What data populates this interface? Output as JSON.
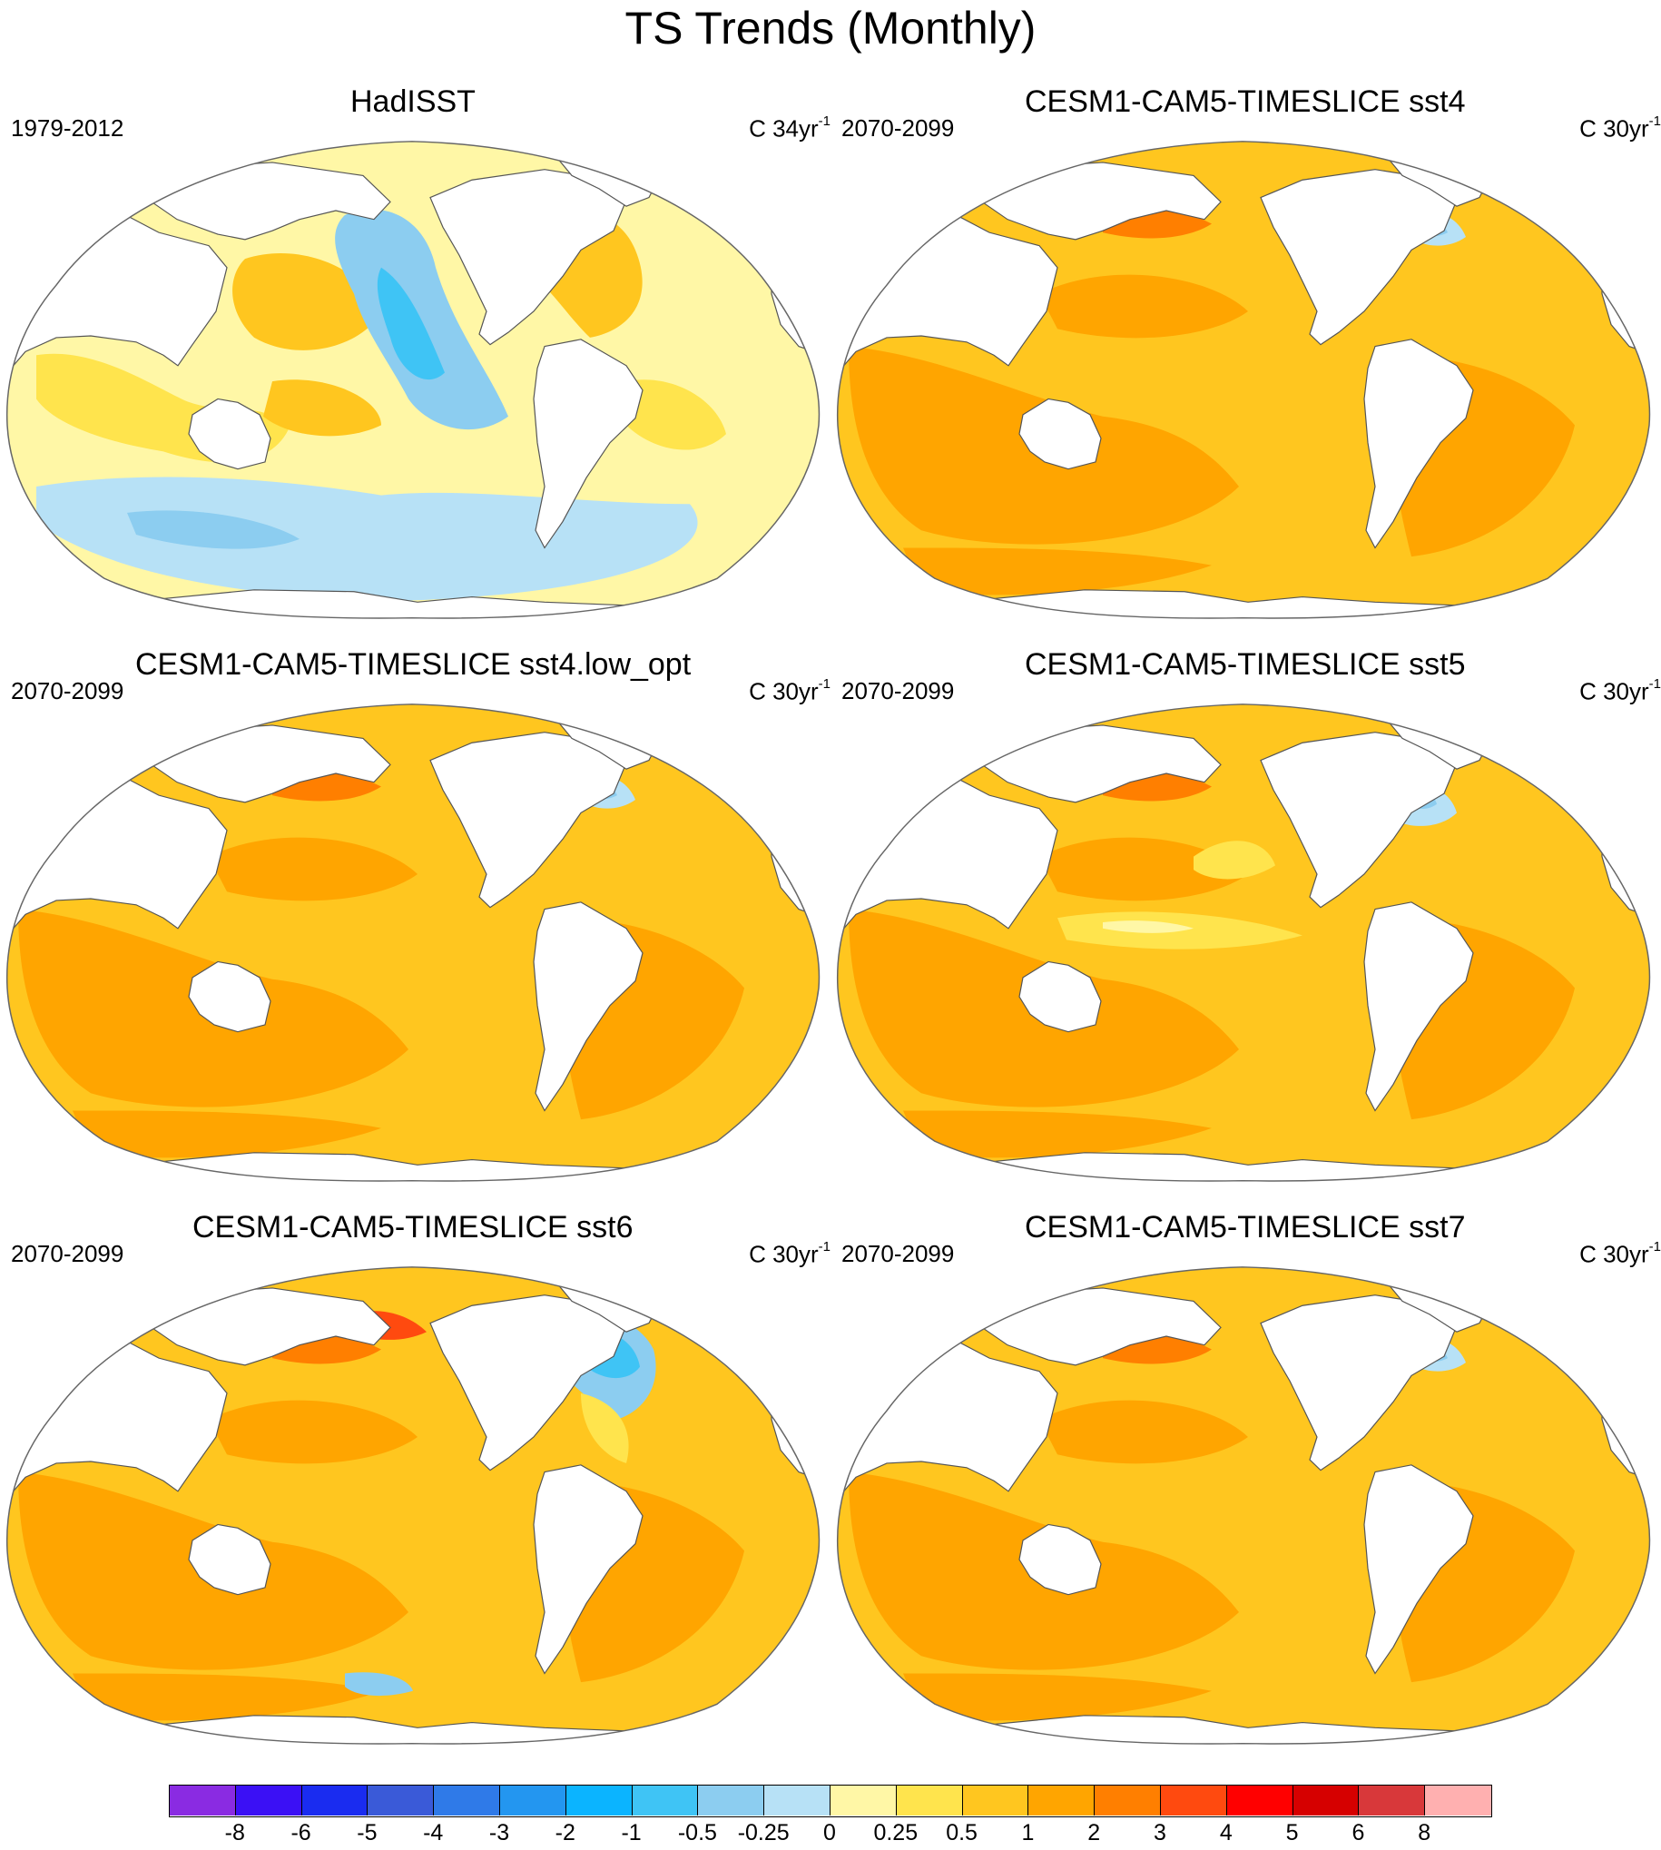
{
  "title": "TS Trends (Monthly)",
  "panels": [
    {
      "title": "HadISST",
      "period": "1979-2012",
      "units": "C 34yr",
      "units_exp": "-1",
      "field": "obs"
    },
    {
      "title": "CESM1-CAM5-TIMESLICE sst4",
      "period": "2070-2099",
      "units": "C 30yr",
      "units_exp": "-1",
      "field": "model"
    },
    {
      "title": "CESM1-CAM5-TIMESLICE sst4.low_opt",
      "period": "2070-2099",
      "units": "C 30yr",
      "units_exp": "-1",
      "field": "model"
    },
    {
      "title": "CESM1-CAM5-TIMESLICE sst5",
      "period": "2070-2099",
      "units": "C 30yr",
      "units_exp": "-1",
      "field": "model_eq"
    },
    {
      "title": "CESM1-CAM5-TIMESLICE sst6",
      "period": "2070-2099",
      "units": "C 30yr",
      "units_exp": "-1",
      "field": "model_natl"
    },
    {
      "title": "CESM1-CAM5-TIMESLICE sst7",
      "period": "2070-2099",
      "units": "C 30yr",
      "units_exp": "-1",
      "field": "model"
    }
  ],
  "colorbar": {
    "colors": [
      "#8a2be2",
      "#3b10f5",
      "#1a2cf0",
      "#3a5ad8",
      "#2f7ae8",
      "#2396f0",
      "#0bb4ff",
      "#3fc4f5",
      "#8ccdf0",
      "#b7e1f6",
      "#fff7a6",
      "#ffe44d",
      "#ffc61f",
      "#ffa500",
      "#ff7f00",
      "#ff4a0f",
      "#ff0000",
      "#d60000",
      "#d8383a",
      "#ffb0b0"
    ],
    "labels": [
      "-8",
      "-6",
      "-5",
      "-4",
      "-3",
      "-2",
      "-1",
      "-0.5",
      "-0.25",
      "0",
      "0.25",
      "0.5",
      "1",
      "2",
      "3",
      "4",
      "5",
      "6",
      "8"
    ]
  }
}
